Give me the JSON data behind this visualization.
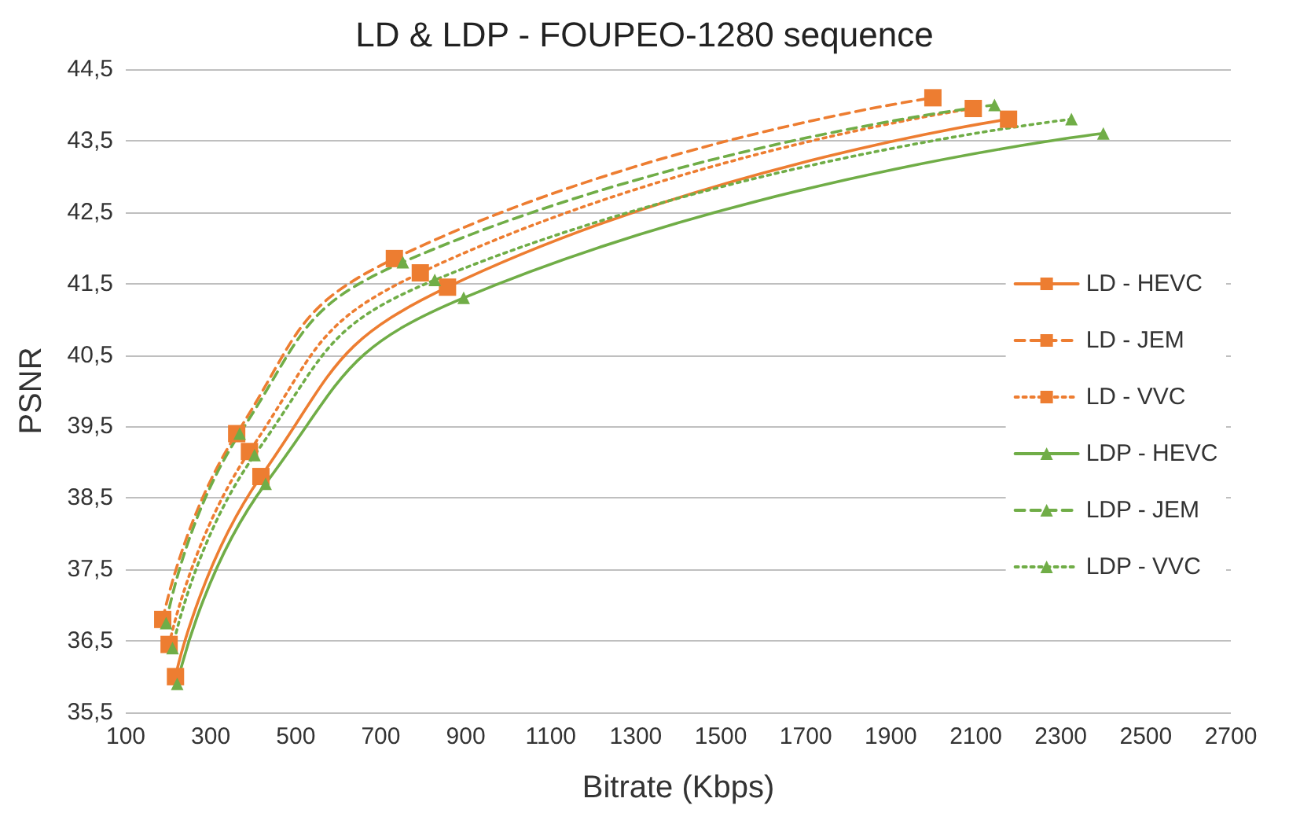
{
  "chart_data": {
    "type": "line",
    "title": "LD & LDP - FOUPEO-1280 sequence",
    "xlabel": "Bitrate (Kbps)",
    "ylabel": "PSNR",
    "xlim": [
      100,
      2700
    ],
    "xticks": [
      100,
      300,
      500,
      700,
      900,
      1100,
      1300,
      1500,
      1700,
      1900,
      2100,
      2300,
      2500,
      2700
    ],
    "ylim": [
      35.5,
      44.5
    ],
    "yticks": [
      {
        "value": 35.5,
        "label": "35,5"
      },
      {
        "value": 36.5,
        "label": "36,5"
      },
      {
        "value": 37.5,
        "label": "37,5"
      },
      {
        "value": 38.5,
        "label": "38,5"
      },
      {
        "value": 39.5,
        "label": "39,5"
      },
      {
        "value": 40.5,
        "label": "40,5"
      },
      {
        "value": 41.5,
        "label": "41,5"
      },
      {
        "value": 42.5,
        "label": "42,5"
      },
      {
        "value": 43.5,
        "label": "43,5"
      },
      {
        "value": 44.5,
        "label": "44,5"
      }
    ],
    "grid": "y",
    "legend": "right",
    "series": [
      {
        "name": "LD - HEVC",
        "color": "#ed7d31",
        "marker": "square",
        "line_style": "solid",
        "x": [
          217,
          418,
          857,
          2177
        ],
        "values": [
          36.0,
          38.8,
          41.45,
          43.8
        ]
      },
      {
        "name": "LD - JEM",
        "color": "#ed7d31",
        "marker": "square",
        "line_style": "dashed",
        "x": [
          187,
          361,
          732,
          1999
        ],
        "values": [
          36.8,
          39.4,
          41.85,
          44.1
        ]
      },
      {
        "name": "LD - VVC",
        "color": "#ed7d31",
        "marker": "square",
        "line_style": "dotted",
        "x": [
          202,
          391,
          793,
          2094
        ],
        "values": [
          36.45,
          39.15,
          41.65,
          43.95
        ]
      },
      {
        "name": "LDP - HEVC",
        "color": "#70ad47",
        "marker": "triangle",
        "line_style": "solid",
        "x": [
          221,
          429,
          895,
          2400
        ],
        "values": [
          35.9,
          38.7,
          41.3,
          43.6
        ]
      },
      {
        "name": "LDP - JEM",
        "color": "#70ad47",
        "marker": "triangle",
        "line_style": "dashed",
        "x": [
          195,
          368,
          752,
          2144
        ],
        "values": [
          36.75,
          39.4,
          41.8,
          44.0
        ]
      },
      {
        "name": "LDP - VVC",
        "color": "#70ad47",
        "marker": "triangle",
        "line_style": "dotted",
        "x": [
          210,
          403,
          827,
          2325
        ],
        "values": [
          36.4,
          39.1,
          41.55,
          43.8
        ]
      }
    ]
  }
}
